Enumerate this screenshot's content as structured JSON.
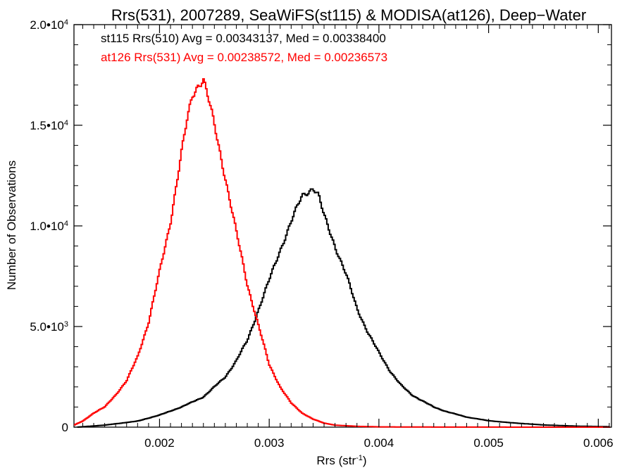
{
  "chart_data": {
    "type": "line",
    "title": "Rrs(531), 2007289, SeaWiFS(st115) & MODISA(at126), Deep−Water",
    "xlabel": "Rrs (str",
    "xlabel_sup": "-1",
    "xlabel_end": ")",
    "ylabel": "Number of Observations",
    "xlim": [
      0.00122,
      0.00612
    ],
    "ylim": [
      0,
      20000
    ],
    "x_ticks": [
      0.002,
      0.003,
      0.004,
      0.005,
      0.006
    ],
    "x_tick_labels": [
      "0.002",
      "0.003",
      "0.004",
      "0.005",
      "0.006"
    ],
    "y_ticks": [
      {
        "value": 0,
        "mantissa": "0",
        "exp": ""
      },
      {
        "value": 5000,
        "mantissa": "5.0•10",
        "exp": "3"
      },
      {
        "value": 10000,
        "mantissa": "1.0•10",
        "exp": "4"
      },
      {
        "value": 15000,
        "mantissa": "1.5•10",
        "exp": "4"
      },
      {
        "value": 20000,
        "mantissa": "2.0•10",
        "exp": "4"
      }
    ],
    "grid": false,
    "legend_position": "top-left",
    "series": [
      {
        "name": "st115 Rrs(510) Avg = 0.00343137, Med = 0.00338400",
        "color": "#000000",
        "points": [
          [
            0.00125,
            0
          ],
          [
            0.0015,
            100
          ],
          [
            0.0018,
            300
          ],
          [
            0.002,
            600
          ],
          [
            0.0022,
            1000
          ],
          [
            0.0024,
            1500
          ],
          [
            0.0026,
            2500
          ],
          [
            0.0027,
            3300
          ],
          [
            0.0028,
            4300
          ],
          [
            0.0029,
            5800
          ],
          [
            0.003,
            7300
          ],
          [
            0.0031,
            8800
          ],
          [
            0.0032,
            10200
          ],
          [
            0.0033,
            11500
          ],
          [
            0.0034,
            11900
          ],
          [
            0.00345,
            11500
          ],
          [
            0.0035,
            10500
          ],
          [
            0.0036,
            9000
          ],
          [
            0.0037,
            7600
          ],
          [
            0.0038,
            5900
          ],
          [
            0.0039,
            4700
          ],
          [
            0.004,
            3700
          ],
          [
            0.0041,
            2800
          ],
          [
            0.0042,
            2100
          ],
          [
            0.0043,
            1600
          ],
          [
            0.0044,
            1300
          ],
          [
            0.0045,
            1000
          ],
          [
            0.0046,
            800
          ],
          [
            0.0047,
            650
          ],
          [
            0.0048,
            500
          ],
          [
            0.005,
            320
          ],
          [
            0.0052,
            220
          ],
          [
            0.0055,
            110
          ],
          [
            0.0058,
            50
          ],
          [
            0.0061,
            20
          ]
        ]
      },
      {
        "name": "at126 Rrs(531) Avg = 0.00238572, Med = 0.00236573",
        "color": "#ff0000",
        "points": [
          [
            0.00122,
            100
          ],
          [
            0.0013,
            300
          ],
          [
            0.0014,
            700
          ],
          [
            0.0015,
            1000
          ],
          [
            0.0016,
            1600
          ],
          [
            0.0017,
            2300
          ],
          [
            0.0018,
            3500
          ],
          [
            0.0019,
            5200
          ],
          [
            0.002,
            7700
          ],
          [
            0.0021,
            10200
          ],
          [
            0.0022,
            13600
          ],
          [
            0.00225,
            15200
          ],
          [
            0.0023,
            16500
          ],
          [
            0.00235,
            17000
          ],
          [
            0.0024,
            17300
          ],
          [
            0.00245,
            16200
          ],
          [
            0.0025,
            15000
          ],
          [
            0.0026,
            12400
          ],
          [
            0.0027,
            9700
          ],
          [
            0.0028,
            7100
          ],
          [
            0.0029,
            5100
          ],
          [
            0.003,
            3100
          ],
          [
            0.0031,
            2000
          ],
          [
            0.0032,
            1200
          ],
          [
            0.0033,
            700
          ],
          [
            0.0034,
            400
          ],
          [
            0.0035,
            200
          ],
          [
            0.0036,
            100
          ],
          [
            0.0038,
            40
          ],
          [
            0.004,
            15
          ],
          [
            0.0045,
            5
          ],
          [
            0.005,
            2
          ],
          [
            0.0061,
            0
          ]
        ]
      }
    ]
  }
}
